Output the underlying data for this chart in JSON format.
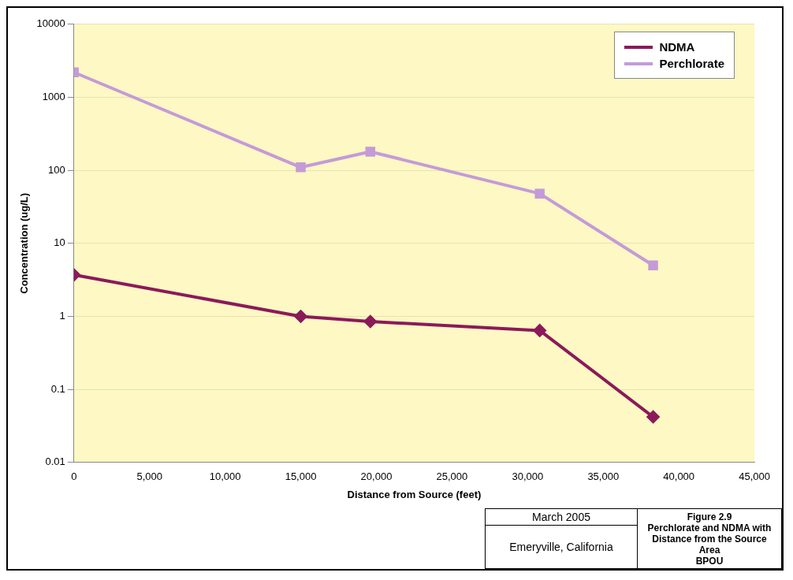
{
  "chart_data": {
    "type": "line",
    "xlabel": "Distance from Source (feet)",
    "ylabel": "Concentration (ug/L)",
    "series": [
      {
        "name": "NDMA",
        "color": "#8b1a5a",
        "marker": "diamond",
        "x": [
          0,
          15000,
          19600,
          30800,
          38300
        ],
        "values": [
          3.7,
          1.0,
          0.85,
          0.64,
          0.042
        ]
      },
      {
        "name": "Perchlorate",
        "color": "#c49bd8",
        "marker": "square",
        "x": [
          0,
          15000,
          19600,
          30800,
          38300
        ],
        "values": [
          2200,
          110,
          180,
          48,
          5
        ]
      }
    ],
    "log": "y",
    "xlim": [
      0,
      45000
    ],
    "xticks": [
      0,
      {
        "value": 5000,
        "label": "5,000"
      },
      {
        "value": 10000,
        "label": "10,000"
      },
      {
        "value": 15000,
        "label": "15,000"
      },
      {
        "value": 20000,
        "label": "20,000"
      },
      {
        "value": 25000,
        "label": "25,000"
      },
      {
        "value": 30000,
        "label": "30,000"
      },
      {
        "value": 35000,
        "label": "35,000"
      },
      {
        "value": 40000,
        "label": "40,000"
      },
      {
        "value": 45000,
        "label": "45,000"
      }
    ],
    "ylim": [
      0.01,
      10000
    ],
    "yticks": [
      0.01,
      0.1,
      1,
      10,
      100,
      1000,
      10000
    ],
    "grid": "y",
    "legend": "top right",
    "annotations": [
      "March 2005",
      "Emeryville, California",
      "Figure 2.9\nPerchlorate and NDMA with Distance from the Source Area\nBPOU"
    ]
  }
}
